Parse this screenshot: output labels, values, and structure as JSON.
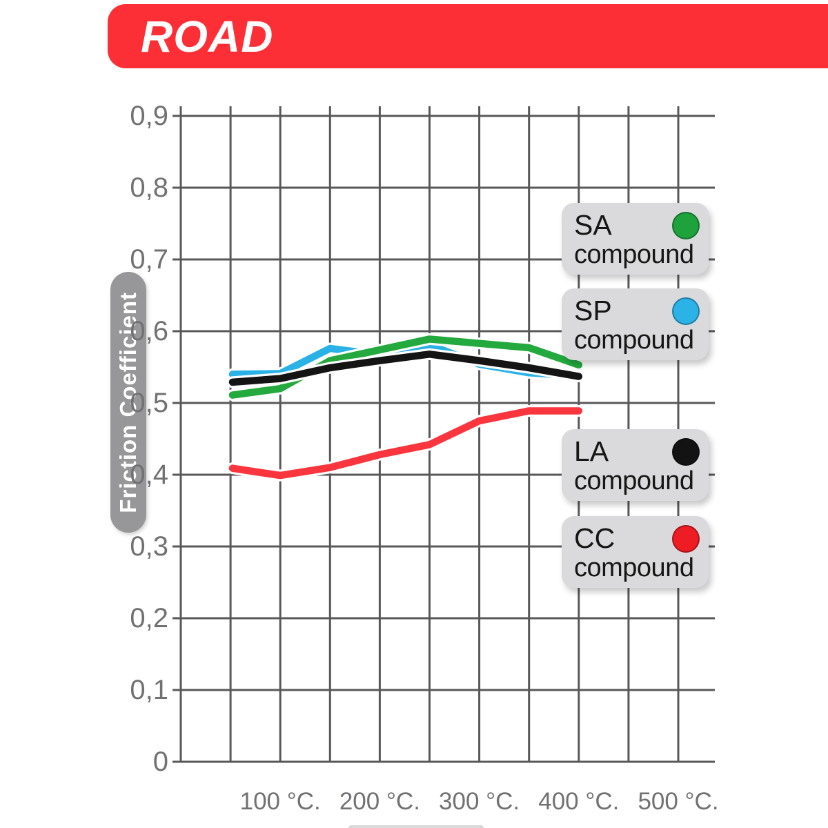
{
  "header": {
    "title": "ROAD",
    "banner_color": "#fc2f36"
  },
  "chart_data": {
    "type": "line",
    "title": "ROAD",
    "ylabel": "Friction Coefficient",
    "xlabel": "",
    "ylim": [
      0,
      0.9
    ],
    "xlim_celsius": [
      0,
      525
    ],
    "grid": true,
    "legend_position": "right",
    "x_minor_step_celsius": 50,
    "y_ticks": [
      {
        "value": 0.9,
        "label": "0,9"
      },
      {
        "value": 0.8,
        "label": "0,8"
      },
      {
        "value": 0.7,
        "label": "0,7"
      },
      {
        "value": 0.6,
        "label": "0,6"
      },
      {
        "value": 0.5,
        "label": "0,5"
      },
      {
        "value": 0.4,
        "label": "0,4"
      },
      {
        "value": 0.3,
        "label": "0,3"
      },
      {
        "value": 0.2,
        "label": "0,2"
      },
      {
        "value": 0.1,
        "label": "0,1"
      },
      {
        "value": 0,
        "label": "0"
      }
    ],
    "x_ticks": [
      {
        "value": 100,
        "label": "100 °C."
      },
      {
        "value": 200,
        "label": "200 °C."
      },
      {
        "value": 300,
        "label": "300 °C."
      },
      {
        "value": 400,
        "label": "400 °C."
      },
      {
        "value": 500,
        "label": "500 °C."
      }
    ],
    "series": [
      {
        "name": "SA compound",
        "code": "SA",
        "line_color": "#23a93d",
        "x": [
          52,
          100,
          150,
          200,
          250,
          300,
          350,
          400
        ],
        "values": [
          0.511,
          0.52,
          0.559,
          0.574,
          0.589,
          0.583,
          0.577,
          0.553
        ]
      },
      {
        "name": "SP compound",
        "code": "SP",
        "line_color": "#2ab2e6",
        "x": [
          52,
          100,
          150,
          200,
          250,
          300,
          350,
          400
        ],
        "values": [
          0.54,
          0.541,
          0.576,
          0.567,
          0.581,
          0.554,
          0.542,
          0.538
        ]
      },
      {
        "name": "LA compound",
        "code": "LA",
        "line_color": "#141414",
        "x": [
          52,
          100,
          150,
          200,
          250,
          300,
          350,
          400
        ],
        "values": [
          0.529,
          0.534,
          0.549,
          0.559,
          0.568,
          0.559,
          0.549,
          0.537
        ]
      },
      {
        "name": "CC compound",
        "code": "CC",
        "line_color": "#f9353e",
        "x": [
          52,
          100,
          150,
          200,
          250,
          300,
          350,
          400
        ],
        "values": [
          0.409,
          0.399,
          0.41,
          0.428,
          0.442,
          0.475,
          0.489,
          0.489
        ]
      }
    ]
  },
  "legend": {
    "items": [
      {
        "code": "SA",
        "label": "compound",
        "color": "#1ea33c"
      },
      {
        "code": "SP",
        "label": "compound",
        "color": "#2bb2e7"
      },
      {
        "code": "LA",
        "label": "compound",
        "color": "#131313"
      },
      {
        "code": "CC",
        "label": "compound",
        "color": "#ee1c23"
      }
    ]
  }
}
